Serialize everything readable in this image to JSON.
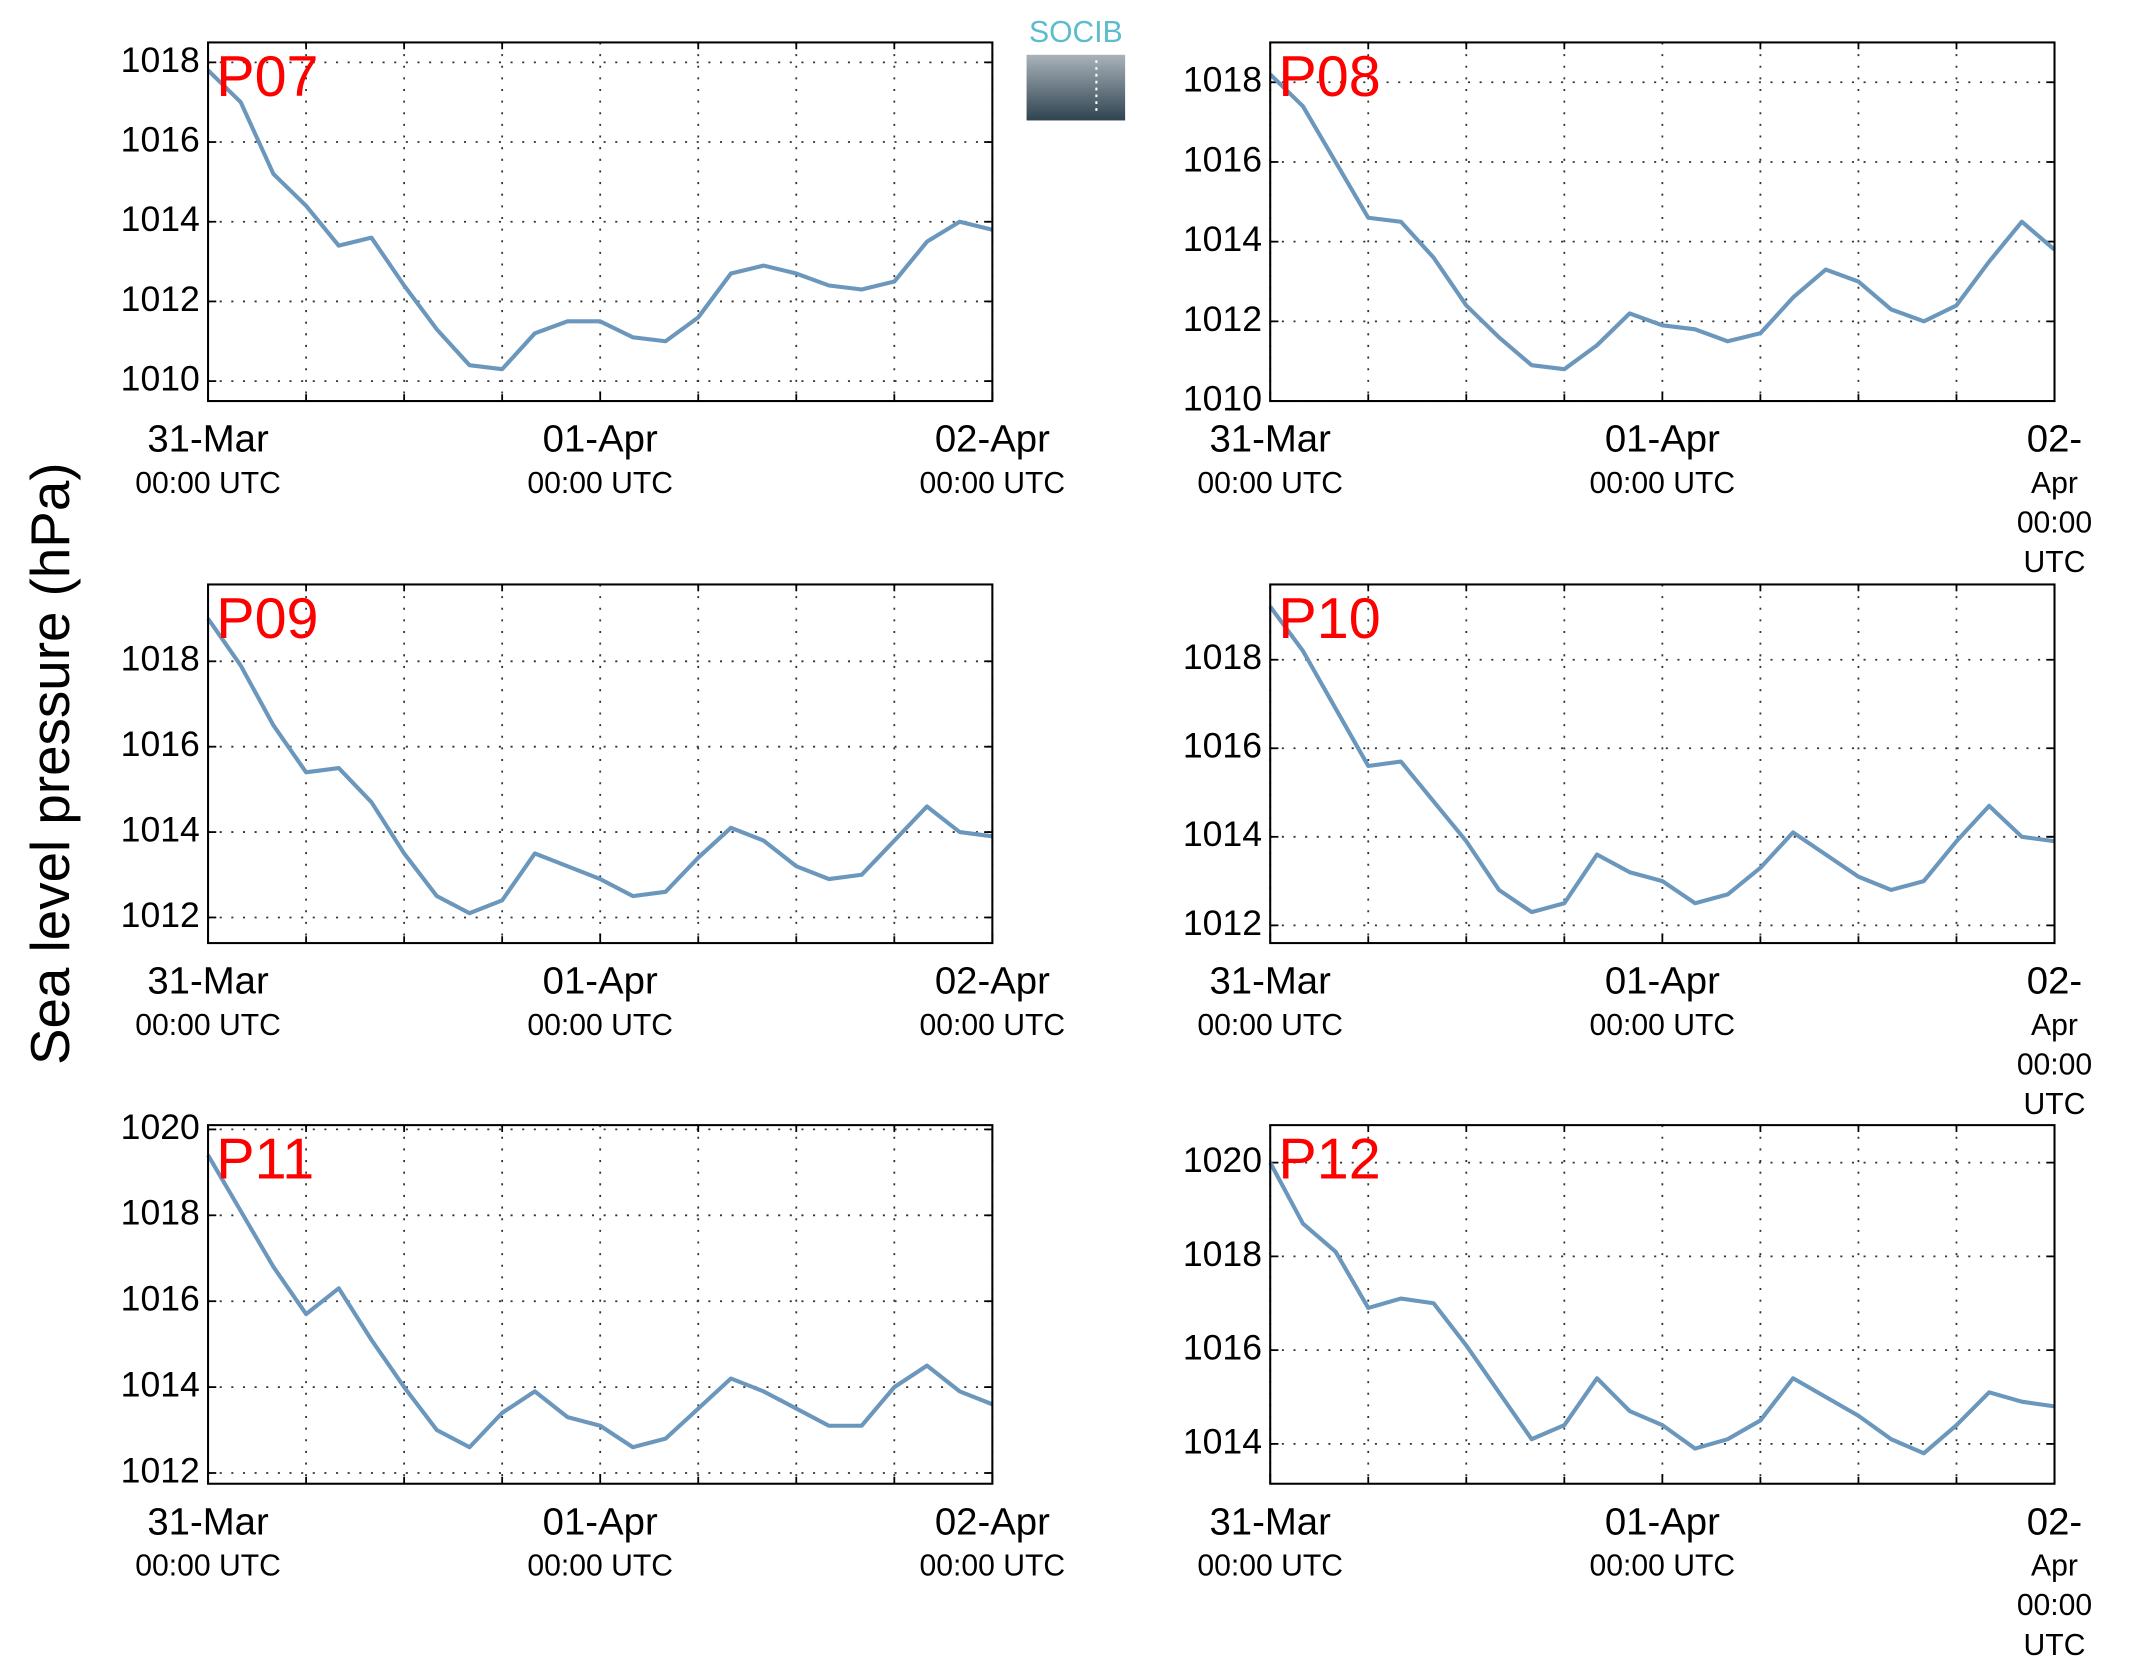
{
  "ylabel": "Sea level pressure (hPa)",
  "logo": "SOCIB",
  "chart_data": [
    {
      "type": "line",
      "title": "P07",
      "x": [
        0,
        2,
        4,
        6,
        8,
        10,
        12,
        14,
        16,
        18,
        20,
        22,
        24,
        26,
        28,
        30,
        32,
        34,
        36,
        38,
        40,
        42,
        44,
        46,
        48
      ],
      "series": [
        {
          "color": "#6b97bd",
          "values": [
            1017.8,
            1017.0,
            1015.2,
            1014.4,
            1013.4,
            1013.6,
            1012.4,
            1011.3,
            1010.4,
            1010.3,
            1011.2,
            1011.5,
            1011.5,
            1011.1,
            1011.0,
            1011.6,
            1012.7,
            1012.9,
            1012.7,
            1012.4,
            1012.3,
            1012.5,
            1013.5,
            1014.0,
            1013.8
          ]
        }
      ],
      "xlim": [
        0,
        48
      ],
      "xticks": [
        {
          "value": 0,
          "label": "31-Mar\n00:00 UTC"
        },
        {
          "value": 24,
          "label": "01-Apr\n00:00 UTC"
        },
        {
          "value": 48,
          "label": "02-Apr\n00:00 UTC"
        }
      ],
      "xminorticks": [
        6,
        12,
        18,
        30,
        36,
        42
      ],
      "ylim": [
        1009.5,
        1018.5
      ],
      "yticks": [
        1010,
        1012,
        1014,
        1016,
        1018
      ],
      "grid": true
    },
    {
      "type": "line",
      "title": "P08",
      "x": [
        0,
        2,
        4,
        6,
        8,
        10,
        12,
        14,
        16,
        18,
        20,
        22,
        24,
        26,
        28,
        30,
        32,
        34,
        36,
        38,
        40,
        42,
        44,
        46,
        48
      ],
      "series": [
        {
          "color": "#6b97bd",
          "values": [
            1018.2,
            1017.4,
            1016.0,
            1014.6,
            1014.5,
            1013.6,
            1012.4,
            1011.6,
            1010.9,
            1010.8,
            1011.4,
            1012.2,
            1011.9,
            1011.8,
            1011.5,
            1011.7,
            1012.6,
            1013.3,
            1013.0,
            1012.3,
            1012.0,
            1012.4,
            1013.5,
            1014.5,
            1013.8
          ]
        }
      ],
      "xlim": [
        0,
        48
      ],
      "xticks": [
        {
          "value": 0,
          "label": "31-Mar\n00:00 UTC"
        },
        {
          "value": 24,
          "label": "01-Apr\n00:00 UTC"
        },
        {
          "value": 48,
          "label": "02-Apr\n00:00 UTC"
        }
      ],
      "xminorticks": [
        6,
        12,
        18,
        30,
        36,
        42
      ],
      "ylim": [
        1010,
        1019
      ],
      "yticks": [
        1010,
        1012,
        1014,
        1016,
        1018
      ],
      "grid": true
    },
    {
      "type": "line",
      "title": "P09",
      "x": [
        0,
        2,
        4,
        6,
        8,
        10,
        12,
        14,
        16,
        18,
        20,
        22,
        24,
        26,
        28,
        30,
        32,
        34,
        36,
        38,
        40,
        42,
        44,
        46,
        48
      ],
      "series": [
        {
          "color": "#6b97bd",
          "values": [
            1019.0,
            1017.9,
            1016.5,
            1015.4,
            1015.5,
            1014.7,
            1013.5,
            1012.5,
            1012.1,
            1012.4,
            1013.5,
            1013.2,
            1012.9,
            1012.5,
            1012.6,
            1013.4,
            1014.1,
            1013.8,
            1013.2,
            1012.9,
            1013.0,
            1013.8,
            1014.6,
            1014.0,
            1013.9
          ]
        }
      ],
      "xlim": [
        0,
        48
      ],
      "xticks": [
        {
          "value": 0,
          "label": "31-Mar\n00:00 UTC"
        },
        {
          "value": 24,
          "label": "01-Apr\n00:00 UTC"
        },
        {
          "value": 48,
          "label": "02-Apr\n00:00 UTC"
        }
      ],
      "xminorticks": [
        6,
        12,
        18,
        30,
        36,
        42
      ],
      "ylim": [
        1011.4,
        1019.8
      ],
      "yticks": [
        1012,
        1014,
        1016,
        1018
      ],
      "grid": true
    },
    {
      "type": "line",
      "title": "P10",
      "x": [
        0,
        2,
        4,
        6,
        8,
        10,
        12,
        14,
        16,
        18,
        20,
        22,
        24,
        26,
        28,
        30,
        32,
        34,
        36,
        38,
        40,
        42,
        44,
        46,
        48
      ],
      "series": [
        {
          "color": "#6b97bd",
          "values": [
            1019.2,
            1018.2,
            1016.9,
            1015.6,
            1015.7,
            1014.8,
            1013.9,
            1012.8,
            1012.3,
            1012.5,
            1013.6,
            1013.2,
            1013.0,
            1012.5,
            1012.7,
            1013.3,
            1014.1,
            1013.6,
            1013.1,
            1012.8,
            1013.0,
            1013.9,
            1014.7,
            1014.0,
            1013.9
          ]
        }
      ],
      "xlim": [
        0,
        48
      ],
      "xticks": [
        {
          "value": 0,
          "label": "31-Mar\n00:00 UTC"
        },
        {
          "value": 24,
          "label": "01-Apr\n00:00 UTC"
        },
        {
          "value": 48,
          "label": "02-Apr\n00:00 UTC"
        }
      ],
      "xminorticks": [
        6,
        12,
        18,
        30,
        36,
        42
      ],
      "ylim": [
        1011.6,
        1019.7
      ],
      "yticks": [
        1012,
        1014,
        1016,
        1018
      ],
      "grid": true
    },
    {
      "type": "line",
      "title": "P11",
      "x": [
        0,
        2,
        4,
        6,
        8,
        10,
        12,
        14,
        16,
        18,
        20,
        22,
        24,
        26,
        28,
        30,
        32,
        34,
        36,
        38,
        40,
        42,
        44,
        46,
        48
      ],
      "series": [
        {
          "color": "#6b97bd",
          "values": [
            1019.4,
            1018.1,
            1016.8,
            1015.7,
            1016.3,
            1015.1,
            1014.0,
            1013.0,
            1012.6,
            1013.4,
            1013.9,
            1013.3,
            1013.1,
            1012.6,
            1012.8,
            1013.5,
            1014.2,
            1013.9,
            1013.5,
            1013.1,
            1013.1,
            1014.0,
            1014.5,
            1013.9,
            1013.6
          ]
        }
      ],
      "xlim": [
        0,
        48
      ],
      "xticks": [
        {
          "value": 0,
          "label": "31-Mar\n00:00 UTC"
        },
        {
          "value": 24,
          "label": "01-Apr\n00:00 UTC"
        },
        {
          "value": 48,
          "label": "02-Apr\n00:00 UTC"
        }
      ],
      "xminorticks": [
        6,
        12,
        18,
        30,
        36,
        42
      ],
      "ylim": [
        1011.75,
        1020.1
      ],
      "yticks": [
        1012,
        1014,
        1016,
        1018,
        1020
      ],
      "grid": true
    },
    {
      "type": "line",
      "title": "P12",
      "x": [
        0,
        2,
        4,
        6,
        8,
        10,
        12,
        14,
        16,
        18,
        20,
        22,
        24,
        26,
        28,
        30,
        32,
        34,
        36,
        38,
        40,
        42,
        44,
        46,
        48
      ],
      "series": [
        {
          "color": "#6b97bd",
          "values": [
            1020.0,
            1018.7,
            1018.1,
            1016.9,
            1017.1,
            1017.0,
            1016.1,
            1015.1,
            1014.1,
            1014.4,
            1015.4,
            1014.7,
            1014.4,
            1013.9,
            1014.1,
            1014.5,
            1015.4,
            1015.0,
            1014.6,
            1014.1,
            1013.8,
            1014.4,
            1015.1,
            1014.9,
            1014.8
          ]
        }
      ],
      "xlim": [
        0,
        48
      ],
      "xticks": [
        {
          "value": 0,
          "label": "31-Mar\n00:00 UTC"
        },
        {
          "value": 24,
          "label": "01-Apr\n00:00 UTC"
        },
        {
          "value": 48,
          "label": "02-Apr\n00:00 UTC"
        }
      ],
      "xminorticks": [
        6,
        12,
        18,
        30,
        36,
        42
      ],
      "ylim": [
        1013.15,
        1020.8
      ],
      "yticks": [
        1014,
        1016,
        1018,
        1020
      ],
      "grid": true
    }
  ]
}
